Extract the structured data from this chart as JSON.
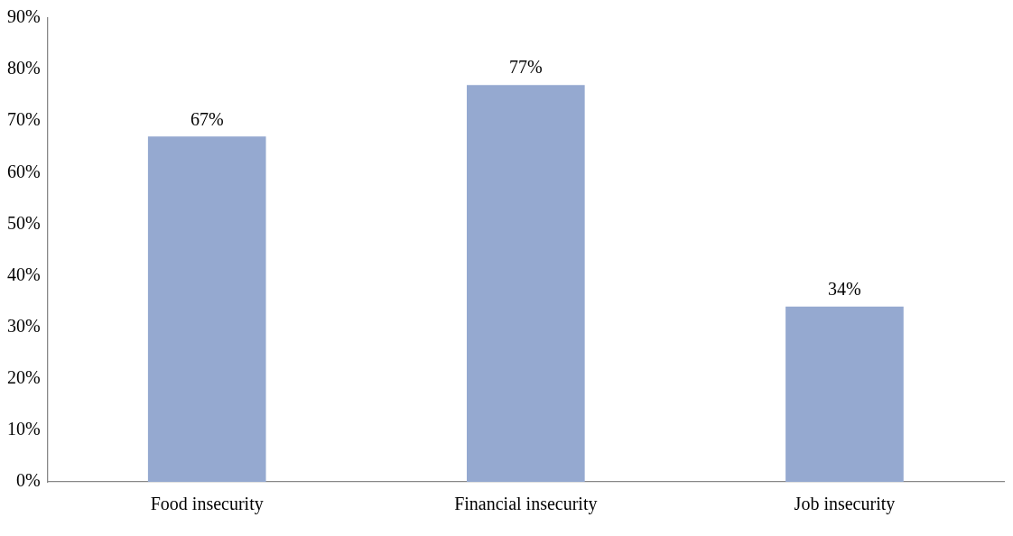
{
  "chart_data": {
    "type": "bar",
    "categories": [
      "Food insecurity",
      "Financial insecurity",
      "Job insecurity"
    ],
    "values": [
      67,
      77,
      34
    ],
    "value_labels": [
      "67%",
      "77%",
      "34%"
    ],
    "color": "#95a9d0",
    "ylim": [
      0,
      90
    ],
    "yticks": [
      {
        "value": 0,
        "label": "0%"
      },
      {
        "value": 10,
        "label": "10%"
      },
      {
        "value": 20,
        "label": "20%"
      },
      {
        "value": 30,
        "label": "30%"
      },
      {
        "value": 40,
        "label": "40%"
      },
      {
        "value": 50,
        "label": "50%"
      },
      {
        "value": 60,
        "label": "60%"
      },
      {
        "value": 70,
        "label": "70%"
      },
      {
        "value": 80,
        "label": "80%"
      },
      {
        "value": 90,
        "label": "90%"
      }
    ],
    "grid": false,
    "legend": false
  }
}
